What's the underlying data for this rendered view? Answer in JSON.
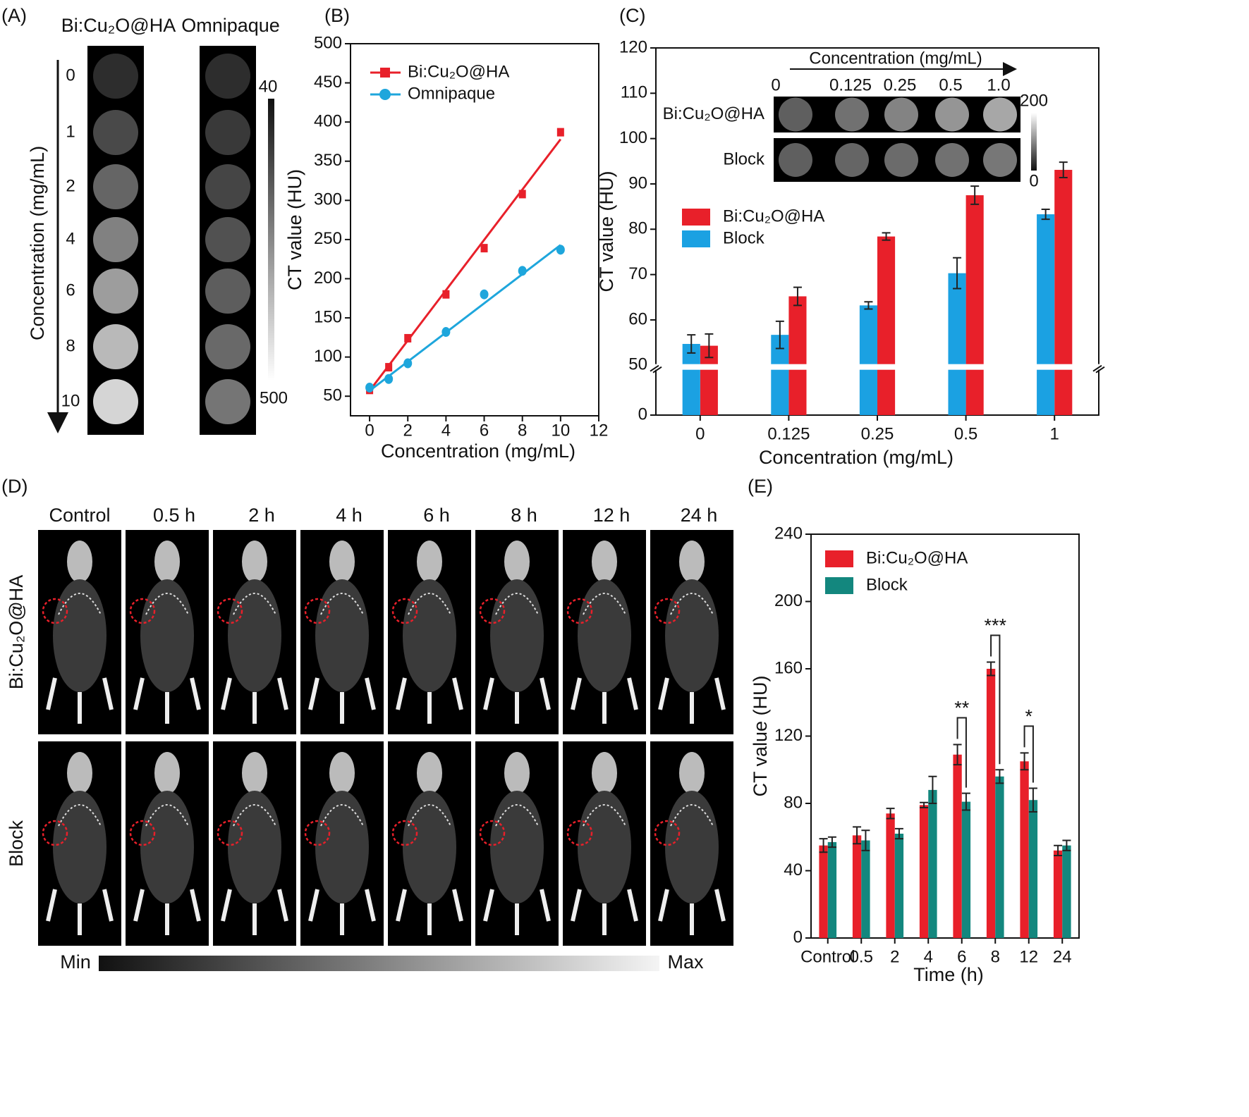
{
  "panel_a": {
    "label": "(A)",
    "columns": [
      "Bi:Cu₂O@HA",
      "Omnipaque"
    ],
    "concentrations": [
      "0",
      "1",
      "2",
      "4",
      "6",
      "8",
      "10"
    ],
    "axis_label": "Concentration (mg/mL)",
    "colorbar": [
      "40",
      "500"
    ]
  },
  "chart_data": [
    {
      "type": "line",
      "label": "(B)",
      "xlabel": "Concentration (mg/mL)",
      "ylabel": "CT value (HU)",
      "xlim": [
        -1,
        12
      ],
      "ylim": [
        25,
        500
      ],
      "xticks": [
        0,
        2,
        4,
        6,
        8,
        10,
        12
      ],
      "yticks": [
        50,
        100,
        150,
        200,
        250,
        300,
        350,
        400,
        450,
        500
      ],
      "legend": "upper left",
      "series": [
        {
          "name": "Bi:Cu₂O@HA",
          "color": "#e8202a",
          "marker": "square",
          "x": [
            0,
            1,
            2,
            4,
            6,
            8,
            10
          ],
          "values": [
            58,
            87,
            124,
            180,
            239,
            308,
            387
          ],
          "fit_x": [
            0,
            10
          ],
          "fit": [
            57,
            378
          ]
        },
        {
          "name": "Omnipaque",
          "color": "#1ea6dc",
          "marker": "circle",
          "x": [
            0,
            1,
            2,
            4,
            6,
            8,
            10
          ],
          "values": [
            61,
            72,
            92,
            132,
            180,
            210,
            237
          ],
          "fit_x": [
            0,
            10
          ],
          "fit": [
            57,
            243
          ]
        }
      ]
    },
    {
      "type": "bar",
      "label": "(C)",
      "xlabel": "Concentration (mg/mL)",
      "ylabel": "CT value (HU)",
      "categories": [
        "0",
        "0.125",
        "0.25",
        "0.5",
        "1"
      ],
      "ylim": [
        0,
        120
      ],
      "ybreak": [
        10,
        49
      ],
      "yticks": [
        0,
        50,
        60,
        70,
        80,
        90,
        100,
        110,
        120
      ],
      "legend": "center left",
      "series": [
        {
          "name": "Bi:Cu₂O@HA",
          "color": "#e8202a",
          "values": [
            54.3,
            65.2,
            78.4,
            87.5,
            93.1
          ],
          "errors": [
            2.6,
            2.0,
            0.8,
            2.0,
            1.7
          ]
        },
        {
          "name": "Block",
          "color": "#1ba1e2",
          "values": [
            54.7,
            56.7,
            63.2,
            70.3,
            83.3
          ],
          "errors": [
            2.0,
            3.0,
            0.8,
            3.4,
            1.1
          ]
        }
      ],
      "inset": {
        "title": "Concentration (mg/mL)",
        "columns": [
          "0",
          "0.125",
          "0.25",
          "0.5",
          "1.0"
        ],
        "rows": [
          "Bi:Cu₂O@HA",
          "Block"
        ],
        "colorbar": [
          "200",
          "0"
        ]
      }
    },
    {
      "type": "bar",
      "label": "(E)",
      "xlabel": "Time (h)",
      "ylabel": "CT value (HU)",
      "categories": [
        "Control",
        "0.5",
        "2",
        "4",
        "6",
        "8",
        "12",
        "24"
      ],
      "ylim": [
        0,
        240
      ],
      "yticks": [
        0,
        40,
        80,
        120,
        160,
        200,
        240
      ],
      "legend": "upper left",
      "series": [
        {
          "name": "Bi:Cu₂O@HA",
          "color": "#e8202a",
          "values": [
            55,
            61,
            74,
            79,
            109,
            160,
            105,
            52
          ],
          "errors": [
            4,
            5,
            3,
            1.5,
            6,
            4,
            5,
            3
          ]
        },
        {
          "name": "Block",
          "color": "#13877e",
          "values": [
            57,
            58,
            62,
            88,
            81,
            96,
            82,
            55
          ],
          "errors": [
            3,
            6,
            3,
            8,
            5,
            4,
            7,
            3
          ]
        }
      ],
      "annotations": [
        {
          "category": "6",
          "text": "**"
        },
        {
          "category": "8",
          "text": "***"
        },
        {
          "category": "12",
          "text": "*"
        }
      ]
    }
  ],
  "panel_d": {
    "label": "(D)",
    "columns": [
      "Control",
      "0.5 h",
      "2 h",
      "4 h",
      "6 h",
      "8 h",
      "12 h",
      "24 h"
    ],
    "rows": [
      "Bi:Cu₂O@HA",
      "Block"
    ],
    "colorbar": [
      "Min",
      "Max"
    ]
  }
}
